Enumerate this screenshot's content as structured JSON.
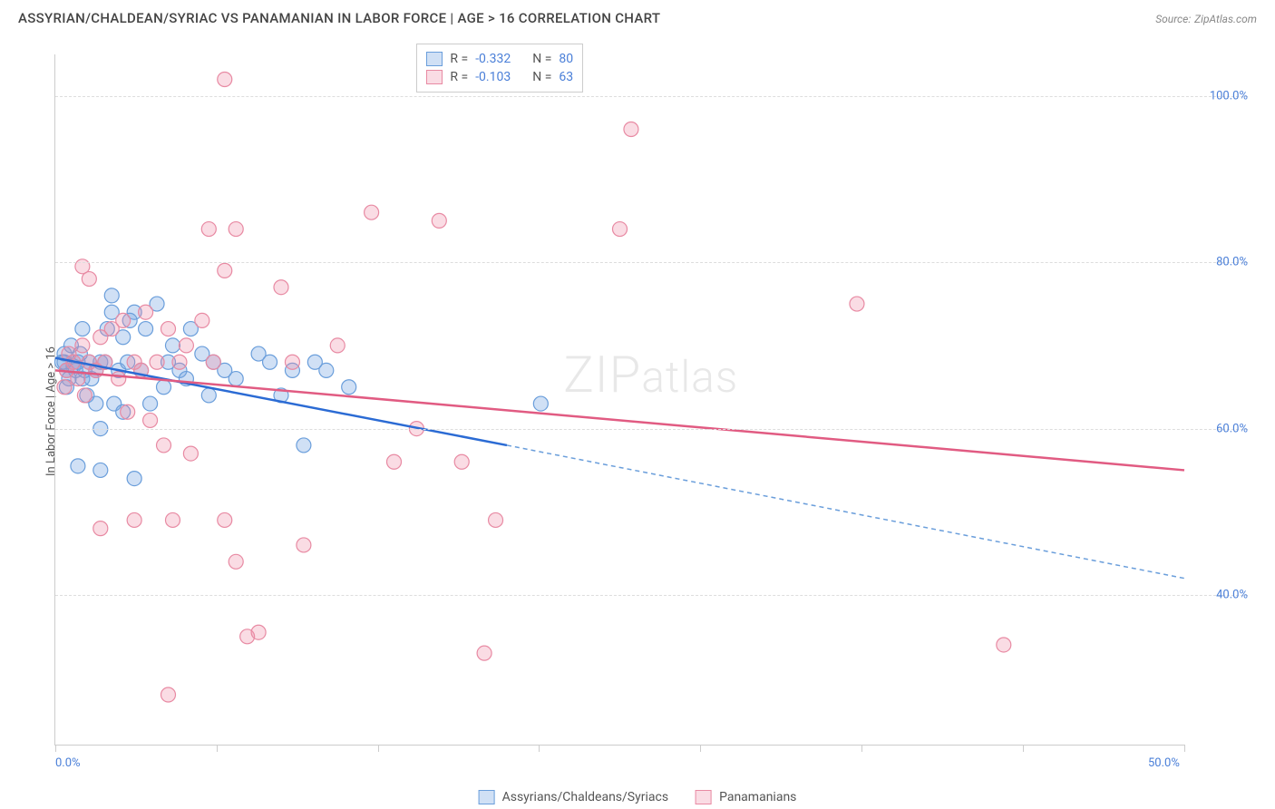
{
  "title": "ASSYRIAN/CHALDEAN/SYRIAC VS PANAMANIAN IN LABOR FORCE | AGE > 16 CORRELATION CHART",
  "source_label": "Source:",
  "source_name": "ZipAtlas.com",
  "y_axis_title": "In Labor Force | Age > 16",
  "watermark": "ZIPatlas",
  "chart": {
    "type": "scatter",
    "xlim": [
      0,
      50
    ],
    "ylim": [
      22,
      105
    ],
    "x_ticks": [
      0,
      50
    ],
    "x_tick_labels": [
      "0.0%",
      "50.0%"
    ],
    "x_minor_ticks": [
      0,
      7.14,
      14.28,
      21.42,
      28.57,
      35.71,
      42.85,
      50
    ],
    "y_ticks": [
      40,
      60,
      80,
      100
    ],
    "y_tick_labels": [
      "40.0%",
      "60.0%",
      "80.0%",
      "100.0%"
    ],
    "background_color": "#ffffff",
    "grid_color": "#dddddd",
    "marker_radius": 8,
    "marker_stroke_width": 1.2,
    "tick_label_color": "#4a7fd8",
    "series": [
      {
        "name": "Assyrians/Chaldeans/Syriacs",
        "fill": "rgba(120,165,225,0.35)",
        "stroke": "#6a9edb",
        "R_label": "R =",
        "R": "-0.332",
        "N_label": "N =",
        "N": "80",
        "trend": {
          "x1": 0,
          "y1": 68.5,
          "x2": 20,
          "y2": 58,
          "color": "#2b6bd4",
          "width": 2.5
        },
        "trend_ext": {
          "x1": 20,
          "y1": 58,
          "x2": 50,
          "y2": 42,
          "color": "#6a9edb",
          "width": 1.5,
          "dash": "5,4"
        },
        "points": [
          [
            0.3,
            68
          ],
          [
            0.5,
            67
          ],
          [
            0.4,
            69
          ],
          [
            0.8,
            67.5
          ],
          [
            0.6,
            66
          ],
          [
            1.0,
            68
          ],
          [
            0.7,
            70
          ],
          [
            1.2,
            66
          ],
          [
            0.9,
            67
          ],
          [
            1.5,
            68
          ],
          [
            0.5,
            65
          ],
          [
            1.1,
            69
          ],
          [
            1.3,
            67
          ],
          [
            0.4,
            68
          ],
          [
            1.8,
            67
          ],
          [
            2.0,
            68
          ],
          [
            1.6,
            66
          ],
          [
            2.2,
            68
          ],
          [
            2.5,
            74
          ],
          [
            1.4,
            64
          ],
          [
            2.8,
            67
          ],
          [
            3.0,
            71
          ],
          [
            2.6,
            63
          ],
          [
            3.2,
            68
          ],
          [
            3.5,
            74
          ],
          [
            3.0,
            62
          ],
          [
            4.0,
            72
          ],
          [
            3.8,
            67
          ],
          [
            4.2,
            63
          ],
          [
            4.5,
            75
          ],
          [
            5.0,
            68
          ],
          [
            4.8,
            65
          ],
          [
            5.2,
            70
          ],
          [
            5.5,
            67
          ],
          [
            6.0,
            72
          ],
          [
            5.8,
            66
          ],
          [
            6.5,
            69
          ],
          [
            7.0,
            68
          ],
          [
            6.8,
            64
          ],
          [
            7.5,
            67
          ],
          [
            8.0,
            66
          ],
          [
            1.8,
            63
          ],
          [
            2.0,
            60
          ],
          [
            2.3,
            72
          ],
          [
            3.3,
            73
          ],
          [
            1.2,
            72
          ],
          [
            1.0,
            55.5
          ],
          [
            2.0,
            55
          ],
          [
            3.5,
            54
          ],
          [
            9.0,
            69
          ],
          [
            9.5,
            68
          ],
          [
            10.0,
            64
          ],
          [
            10.5,
            67
          ],
          [
            11.0,
            58
          ],
          [
            11.5,
            68
          ],
          [
            12.0,
            67
          ],
          [
            13.0,
            65
          ],
          [
            21.5,
            63
          ],
          [
            2.5,
            76
          ]
        ]
      },
      {
        "name": "Panamanians",
        "fill": "rgba(240,140,165,0.3)",
        "stroke": "#e88aa3",
        "R_label": "R =",
        "R": "-0.103",
        "N_label": "N =",
        "N": "63",
        "trend": {
          "x1": 0,
          "y1": 67,
          "x2": 50,
          "y2": 55,
          "color": "#e15b82",
          "width": 2.5
        },
        "points": [
          [
            0.5,
            67
          ],
          [
            0.8,
            68
          ],
          [
            1.0,
            66
          ],
          [
            0.6,
            69
          ],
          [
            1.2,
            70
          ],
          [
            1.5,
            68
          ],
          [
            0.4,
            65
          ],
          [
            1.8,
            67
          ],
          [
            2.0,
            71
          ],
          [
            1.3,
            64
          ],
          [
            2.2,
            68
          ],
          [
            2.5,
            72
          ],
          [
            2.8,
            66
          ],
          [
            3.0,
            73
          ],
          [
            3.5,
            68
          ],
          [
            3.2,
            62
          ],
          [
            4.0,
            74
          ],
          [
            3.8,
            67
          ],
          [
            4.2,
            61
          ],
          [
            4.5,
            68
          ],
          [
            5.0,
            72
          ],
          [
            4.8,
            58
          ],
          [
            5.5,
            68
          ],
          [
            6.0,
            57
          ],
          [
            5.8,
            70
          ],
          [
            6.5,
            73
          ],
          [
            7.0,
            68
          ],
          [
            6.8,
            84
          ],
          [
            7.5,
            102
          ],
          [
            5.2,
            49
          ],
          [
            8.0,
            84
          ],
          [
            7.5,
            49
          ],
          [
            1.2,
            79.5
          ],
          [
            7.5,
            79
          ],
          [
            8.0,
            44
          ],
          [
            5.0,
            28
          ],
          [
            10.0,
            77
          ],
          [
            10.5,
            68
          ],
          [
            11.0,
            46
          ],
          [
            12.5,
            70
          ],
          [
            14.0,
            86
          ],
          [
            15.0,
            56
          ],
          [
            17.0,
            85
          ],
          [
            18.0,
            56
          ],
          [
            19.0,
            33
          ],
          [
            19.5,
            49
          ],
          [
            25.0,
            84
          ],
          [
            25.5,
            96
          ],
          [
            16.0,
            60
          ],
          [
            35.5,
            75
          ],
          [
            42.0,
            34
          ],
          [
            8.5,
            35
          ],
          [
            1.5,
            78
          ],
          [
            2.0,
            48
          ],
          [
            3.5,
            49
          ],
          [
            9.0,
            35.5
          ]
        ]
      }
    ]
  },
  "legend": {
    "series1": "Assyrians/Chaldeans/Syriacs",
    "series2": "Panamanians"
  }
}
